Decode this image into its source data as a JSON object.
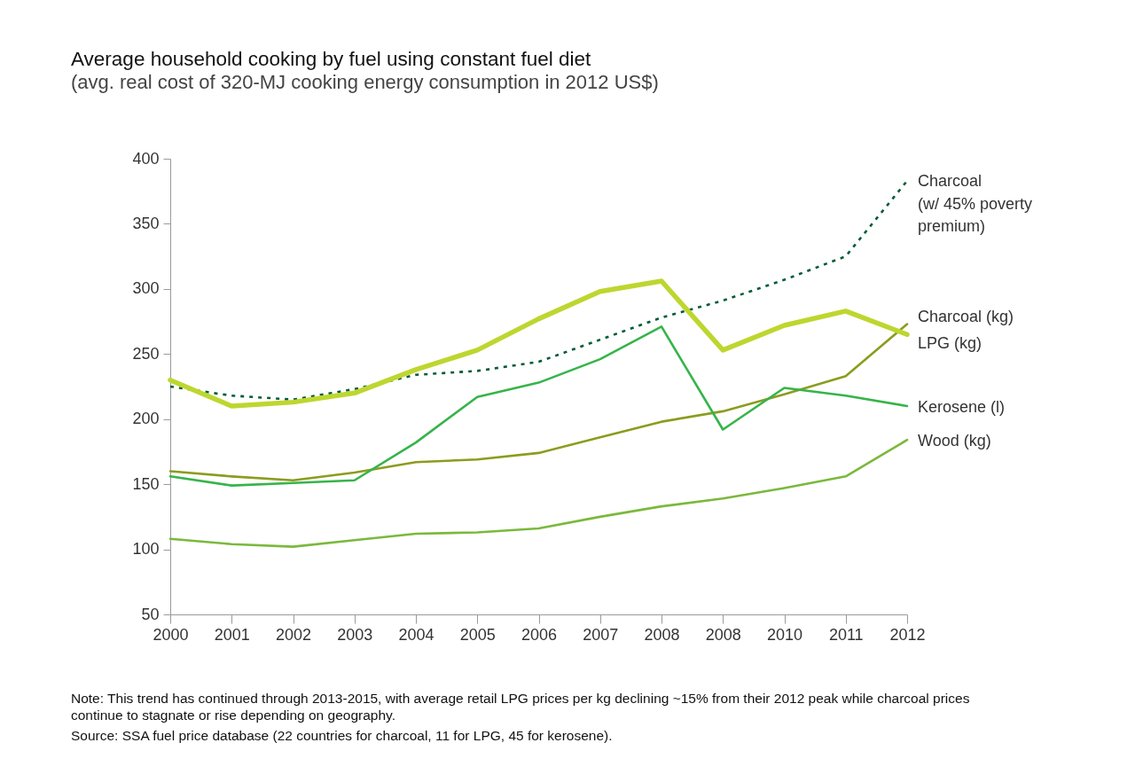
{
  "chart_data": {
    "type": "line",
    "title": "Average household cooking by fuel using constant fuel diet",
    "subtitle": "(avg. real cost of 320-MJ cooking energy consumption in 2012 US$)",
    "categories": [
      "2000",
      "2001",
      "2002",
      "2003",
      "2004",
      "2005",
      "2006",
      "2007",
      "2008",
      "2008",
      "2010",
      "2011",
      "2012"
    ],
    "series": [
      {
        "name": "Charcoal (w/ 45% poverty premium)",
        "color": "#005c35",
        "line_style": "dotted",
        "values": [
          225,
          218,
          215,
          223,
          234,
          237,
          244,
          261,
          278,
          291,
          307,
          325,
          383
        ]
      },
      {
        "name": "Charcoal (kg)",
        "color": "#8c9c1e",
        "values": [
          160,
          156,
          153,
          159,
          167,
          169,
          174,
          186,
          198,
          206,
          219,
          233,
          273
        ]
      },
      {
        "name": "LPG (kg)",
        "color": "#bed62f",
        "values": [
          230,
          210,
          213,
          220,
          238,
          253,
          277,
          298,
          306,
          253,
          272,
          283,
          265
        ]
      },
      {
        "name": "Kerosene (l)",
        "color": "#36b44a",
        "values": [
          156,
          149,
          151,
          153,
          182,
          217,
          228,
          246,
          271,
          192,
          224,
          218,
          210
        ]
      },
      {
        "name": "Wood (kg)",
        "color": "#7ab93c",
        "values": [
          108,
          104,
          102,
          107,
          112,
          113,
          116,
          125,
          133,
          139,
          147,
          156,
          184
        ]
      }
    ],
    "ylim": [
      50,
      400
    ],
    "yticks": [
      50,
      100,
      150,
      200,
      250,
      300,
      350,
      400
    ],
    "grid": false,
    "marker": "none",
    "line_style": "solid",
    "annotations": [
      "Note: This trend has continued through 2013-2015, with average retail LPG prices per kg declining ~15% from their 2012 peak while charcoal prices continue to stagnate or rise depending on geography.",
      "Source: SSA fuel price database (22 countries for charcoal, 11 for LPG, 45 for kerosene)."
    ]
  }
}
